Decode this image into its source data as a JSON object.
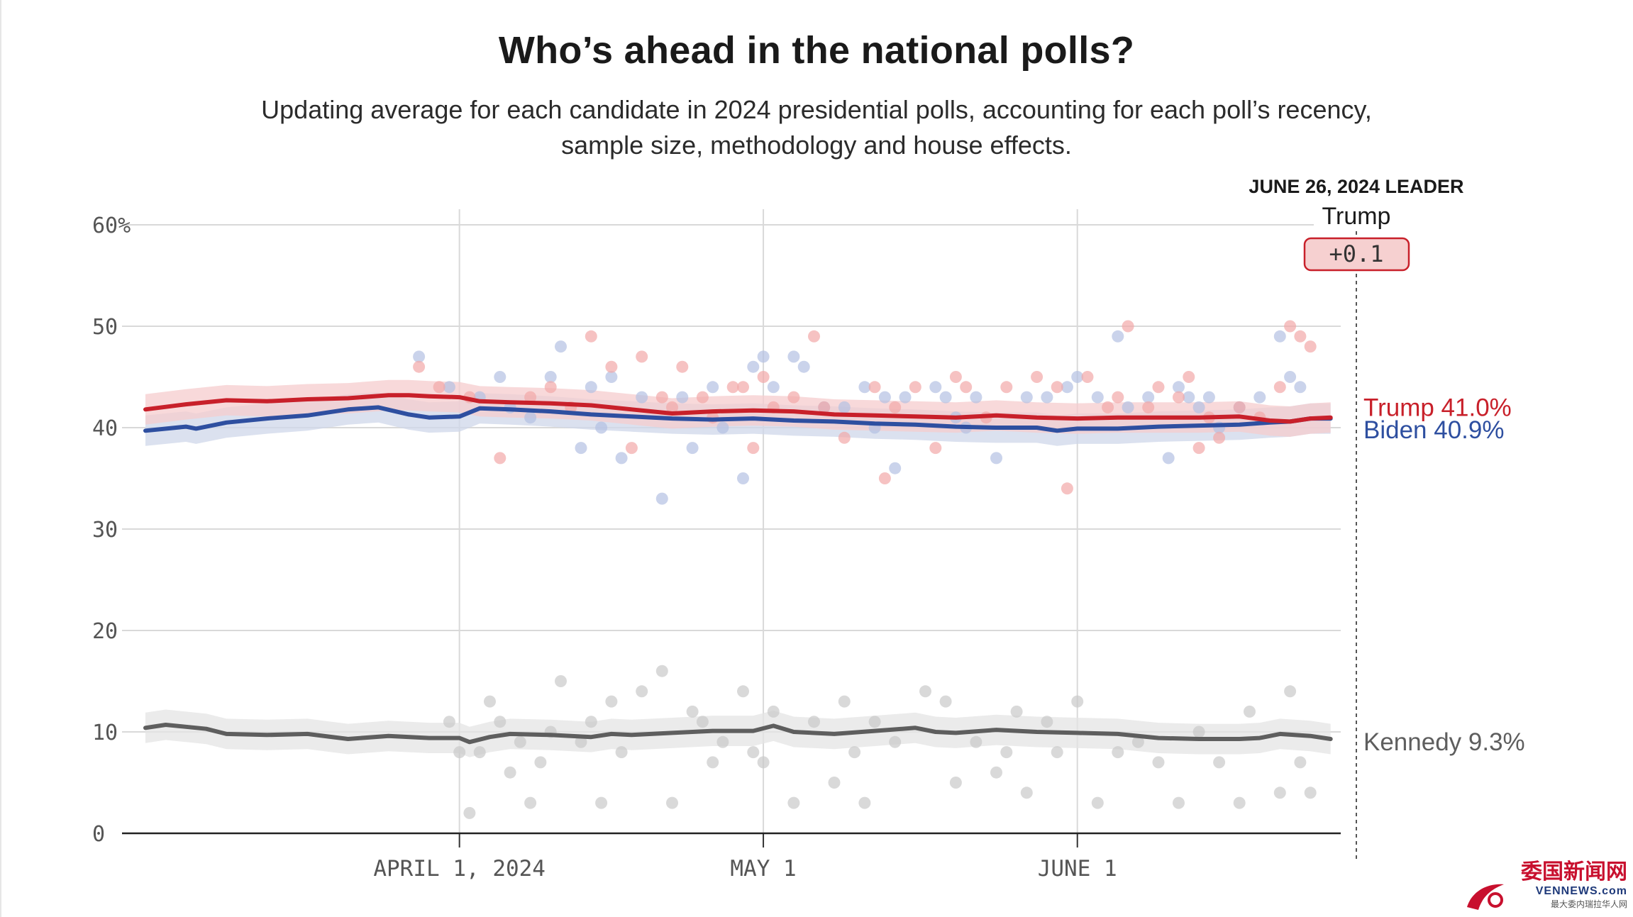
{
  "header": {
    "title": "Who’s ahead in the national polls?",
    "subtitle_line1": "Updating average for each candidate in 2024 presidential polls, accounting for each poll’s recency,",
    "subtitle_line2": "sample size, methodology and house effects."
  },
  "leader_box": {
    "date_label": "JUNE 26, 2024 LEADER",
    "name": "Trump",
    "margin": "+0.1"
  },
  "watermark": {
    "cn": "委国新闻网",
    "en": "VENNEWS.com",
    "sub": "最大委内瑞拉华人网"
  },
  "colors": {
    "trump": "#c8202a",
    "biden": "#2e4fa0",
    "kennedy": "#5e5e5e",
    "trump_band": "#f6cccd",
    "biden_band": "#cfd7ea",
    "kennedy_band": "#e4e4e4",
    "trump_dot": "#f2a8a8",
    "biden_dot": "#b3c1e2",
    "kennedy_dot": "#c9c9c9",
    "grid": "#d9d9d9"
  },
  "chart_data": {
    "type": "line",
    "title": "Who’s ahead in the national polls?",
    "ylabel": "",
    "xlabel": "",
    "ylim": [
      0,
      60
    ],
    "y_ticks": [
      0,
      10,
      20,
      30,
      40,
      50,
      60
    ],
    "y_tick_labels": [
      "0",
      "10",
      "20",
      "30",
      "40",
      "50",
      "60%"
    ],
    "x_range_days": [
      0,
      118
    ],
    "x_ticks": [
      {
        "day": 31,
        "label": "APRIL 1, 2024"
      },
      {
        "day": 61,
        "label": "MAY 1"
      },
      {
        "day": 92,
        "label": "JUNE 1"
      }
    ],
    "end_label_day": 117,
    "band_halfwidth": 1.5,
    "series": [
      {
        "name": "Trump",
        "end_label": "Trump 41.0%",
        "color_key": "trump",
        "avg_days": [
          0,
          4,
          8,
          12,
          16,
          20,
          24,
          26,
          28,
          31,
          33,
          36,
          40,
          44,
          48,
          52,
          56,
          60,
          64,
          68,
          72,
          76,
          80,
          84,
          88,
          92,
          96,
          100,
          104,
          108,
          111,
          113,
          115,
          117
        ],
        "avg_values": [
          41.8,
          42.3,
          42.7,
          42.6,
          42.8,
          42.9,
          43.2,
          43.2,
          43.1,
          43.0,
          42.6,
          42.5,
          42.4,
          42.2,
          41.8,
          41.4,
          41.6,
          41.7,
          41.6,
          41.3,
          41.2,
          41.1,
          41.0,
          41.2,
          41.0,
          40.9,
          41.0,
          41.0,
          41.0,
          41.1,
          40.7,
          40.6,
          40.9,
          41.0
        ],
        "poll_days": [
          27,
          29,
          32,
          35,
          38,
          40,
          42,
          44,
          46,
          48,
          49,
          51,
          52,
          53,
          55,
          56,
          58,
          59,
          60,
          61,
          62,
          64,
          66,
          67,
          69,
          72,
          73,
          74,
          76,
          78,
          80,
          81,
          83,
          85,
          88,
          90,
          91,
          93,
          95,
          96,
          97,
          99,
          100,
          102,
          103,
          104,
          105,
          106,
          108,
          110,
          112,
          113,
          114,
          115
        ],
        "poll_values": [
          46,
          44,
          43,
          37,
          43,
          44,
          42,
          49,
          46,
          38,
          47,
          43,
          42,
          46,
          43,
          41,
          44,
          44,
          38,
          45,
          42,
          43,
          49,
          42,
          39,
          44,
          35,
          42,
          44,
          38,
          45,
          44,
          41,
          44,
          45,
          44,
          34,
          45,
          42,
          43,
          50,
          42,
          44,
          43,
          45,
          38,
          41,
          39,
          42,
          41,
          44,
          50,
          49,
          48
        ]
      },
      {
        "name": "Biden",
        "end_label": "Biden 40.9%",
        "color_key": "biden",
        "avg_days": [
          0,
          4,
          5,
          8,
          12,
          16,
          20,
          23,
          26,
          28,
          31,
          33,
          36,
          40,
          44,
          48,
          52,
          56,
          60,
          64,
          68,
          72,
          76,
          80,
          84,
          88,
          90,
          92,
          96,
          100,
          104,
          108,
          111,
          113,
          115,
          117
        ],
        "avg_values": [
          39.7,
          40.1,
          39.9,
          40.5,
          40.9,
          41.2,
          41.8,
          42.0,
          41.3,
          41.0,
          41.1,
          41.9,
          41.8,
          41.6,
          41.3,
          41.1,
          40.9,
          40.8,
          40.9,
          40.7,
          40.6,
          40.4,
          40.3,
          40.1,
          40.0,
          40.0,
          39.7,
          39.9,
          39.9,
          40.1,
          40.2,
          40.3,
          40.5,
          40.6,
          40.9,
          40.9
        ],
        "poll_days": [
          27,
          30,
          33,
          35,
          36,
          38,
          40,
          41,
          43,
          44,
          45,
          46,
          47,
          49,
          51,
          53,
          54,
          56,
          57,
          59,
          60,
          61,
          62,
          64,
          65,
          67,
          69,
          71,
          72,
          73,
          74,
          75,
          78,
          79,
          80,
          81,
          82,
          84,
          87,
          89,
          91,
          92,
          94,
          96,
          97,
          99,
          101,
          102,
          103,
          104,
          105,
          106,
          108,
          110,
          112,
          113,
          114
        ],
        "poll_values": [
          47,
          44,
          43,
          45,
          42,
          41,
          45,
          48,
          38,
          44,
          40,
          45,
          37,
          43,
          33,
          43,
          38,
          44,
          40,
          35,
          46,
          47,
          44,
          47,
          46,
          42,
          42,
          44,
          40,
          43,
          36,
          43,
          44,
          43,
          41,
          40,
          43,
          37,
          43,
          43,
          44,
          45,
          43,
          49,
          42,
          43,
          37,
          44,
          43,
          42,
          43,
          40,
          42,
          43,
          49,
          45,
          44
        ]
      },
      {
        "name": "Kennedy",
        "end_label": "Kennedy 9.3%",
        "color_key": "kennedy",
        "avg_days": [
          0,
          2,
          4,
          6,
          8,
          12,
          16,
          20,
          24,
          28,
          31,
          32,
          34,
          36,
          40,
          44,
          46,
          48,
          52,
          56,
          60,
          62,
          64,
          68,
          72,
          76,
          78,
          80,
          84,
          88,
          92,
          96,
          100,
          104,
          108,
          110,
          112,
          115,
          117
        ],
        "avg_values": [
          10.4,
          10.7,
          10.5,
          10.3,
          9.8,
          9.7,
          9.8,
          9.3,
          9.6,
          9.4,
          9.4,
          9.0,
          9.5,
          9.8,
          9.7,
          9.5,
          9.8,
          9.7,
          9.9,
          10.1,
          10.1,
          10.6,
          10.0,
          9.8,
          10.1,
          10.4,
          10.0,
          9.9,
          10.2,
          10.0,
          9.9,
          9.8,
          9.4,
          9.3,
          9.3,
          9.4,
          9.8,
          9.6,
          9.3
        ],
        "poll_days": [
          30,
          31,
          32,
          33,
          34,
          35,
          36,
          37,
          38,
          39,
          40,
          41,
          43,
          44,
          45,
          46,
          47,
          49,
          51,
          52,
          54,
          55,
          56,
          57,
          59,
          60,
          61,
          62,
          64,
          66,
          68,
          69,
          70,
          71,
          72,
          74,
          77,
          79,
          80,
          82,
          84,
          85,
          86,
          87,
          89,
          90,
          92,
          94,
          96,
          98,
          100,
          102,
          104,
          106,
          108,
          109,
          112,
          113,
          114,
          115
        ],
        "poll_values": [
          11,
          8,
          2,
          8,
          13,
          11,
          6,
          9,
          3,
          7,
          10,
          15,
          9,
          11,
          3,
          13,
          8,
          14,
          16,
          3,
          12,
          11,
          7,
          9,
          14,
          8,
          7,
          12,
          3,
          11,
          5,
          13,
          8,
          3,
          11,
          9,
          14,
          13,
          5,
          9,
          6,
          8,
          12,
          4,
          11,
          8,
          13,
          3,
          8,
          9,
          7,
          3,
          10,
          7,
          3,
          12,
          4,
          14,
          7,
          4
        ]
      }
    ]
  }
}
